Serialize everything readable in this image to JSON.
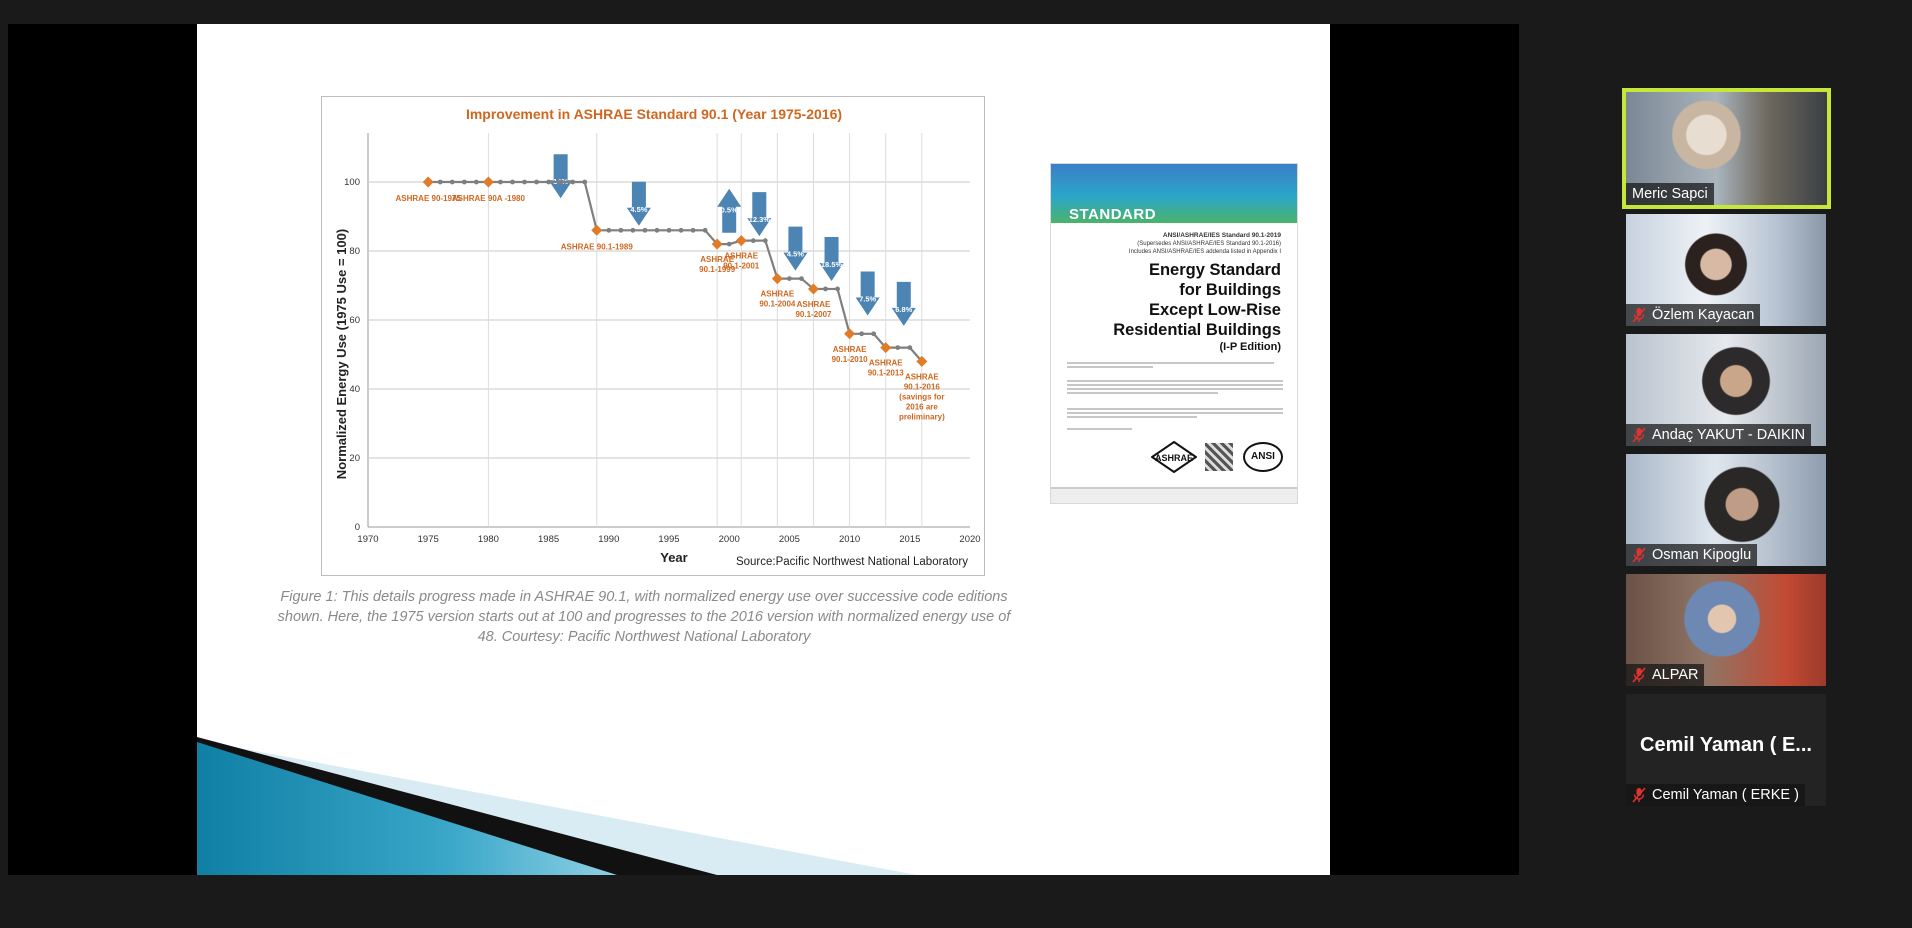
{
  "chart": {
    "title": "Improvement in ASHRAE Standard 90.1 (Year 1975-2016)",
    "ylabel": "Normalized Energy Use  (1975 Use = 100)",
    "xlabel": "Year",
    "source": "Source:Pacific Northwest National Laboratory",
    "x_ticks": [
      "1970",
      "1975",
      "1980",
      "1985",
      "1990",
      "1995",
      "2000",
      "2005",
      "2010",
      "2015",
      "2020"
    ],
    "y_ticks": [
      "0",
      "20",
      "40",
      "60",
      "80",
      "100"
    ]
  },
  "chart_data": {
    "type": "line",
    "title": "Improvement in ASHRAE Standard 90.1 (Year 1975-2016)",
    "xlabel": "Year",
    "ylabel": "Normalized Energy Use  (1975 Use = 100)",
    "xlim": [
      1970,
      2020
    ],
    "ylim": [
      0,
      100
    ],
    "grid": true,
    "series_color": "#7f7f7f",
    "marker_color": "#e07b28",
    "arrow_color": "#4c84b4",
    "label_color": "#d0671f",
    "x": [
      1975,
      1976,
      1977,
      1978,
      1979,
      1980,
      1981,
      1982,
      1983,
      1984,
      1985,
      1986,
      1987,
      1988,
      1989,
      1990,
      1991,
      1992,
      1993,
      1994,
      1995,
      1996,
      1997,
      1998,
      1999,
      2000,
      2001,
      2002,
      2003,
      2004,
      2005,
      2006,
      2007,
      2008,
      2009,
      2010,
      2011,
      2012,
      2013,
      2014,
      2015,
      2016
    ],
    "y": [
      100,
      100,
      100,
      100,
      100,
      100,
      100,
      100,
      100,
      100,
      100,
      100,
      100,
      100,
      86,
      86,
      86,
      86,
      86,
      86,
      86,
      86,
      86,
      86,
      82,
      82,
      83,
      83,
      83,
      72,
      72,
      72,
      69,
      69,
      69,
      56,
      56,
      56,
      52,
      52,
      52,
      48
    ],
    "editions": [
      {
        "x": 1975,
        "y": 100,
        "label": [
          "ASHRAE 90-1975"
        ]
      },
      {
        "x": 1980,
        "y": 100,
        "label": [
          "ASHRAE 90A -1980"
        ]
      },
      {
        "x": 1989,
        "y": 86,
        "label": [
          "ASHRAE 90.1-1989"
        ]
      },
      {
        "x": 1999,
        "y": 82,
        "label": [
          "ASHRAE",
          "90.1-1999"
        ]
      },
      {
        "x": 2001,
        "y": 83,
        "label": [
          "ASHRAE",
          "90.1-2001"
        ]
      },
      {
        "x": 2004,
        "y": 72,
        "label": [
          "ASHRAE",
          "90.1-2004"
        ]
      },
      {
        "x": 2007,
        "y": 69,
        "label": [
          "ASHRAE",
          "90.1-2007"
        ]
      },
      {
        "x": 2010,
        "y": 56,
        "label": [
          "ASHRAE",
          "90.1-2010"
        ]
      },
      {
        "x": 2013,
        "y": 52,
        "label": [
          "ASHRAE",
          "90.1-2013"
        ]
      },
      {
        "x": 2016,
        "y": 48,
        "label": [
          "ASHRAE",
          "90.1-2016",
          "(savings for",
          "2016 are",
          "preliminary)"
        ]
      }
    ],
    "arrows": [
      {
        "label": "14%",
        "direction": "down",
        "x": 1986,
        "y": 104
      },
      {
        "label": "4.5%",
        "direction": "down",
        "x": 1992.5,
        "y": 96
      },
      {
        "label": "0.5%",
        "direction": "up",
        "x": 2000,
        "y": 94
      },
      {
        "label": "12.3%",
        "direction": "down",
        "x": 2002.5,
        "y": 93
      },
      {
        "label": "4.5%",
        "direction": "down",
        "x": 2005.5,
        "y": 83
      },
      {
        "label": "18.5%",
        "direction": "down",
        "x": 2008.5,
        "y": 80
      },
      {
        "label": "7.5%",
        "direction": "down",
        "x": 2011.5,
        "y": 70
      },
      {
        "label": "6.8%",
        "direction": "down",
        "x": 2014.5,
        "y": 67
      }
    ]
  },
  "caption": "Figure 1: This details progress made in ASHRAE 90.1, with normalized energy use over successive code editions shown. Here, the 1975 version starts out at 100 and progresses to the 2016 version with normalized energy use of 48. Courtesy: Pacific Northwest National Laboratory",
  "cover": {
    "band_text": "STANDARD",
    "designation": "ANSI/ASHRAE/IES Standard 90.1-2019",
    "supersedes": "(Supersedes ANSI/ASHRAE/IES Standard 90.1-2016)",
    "addenda": "Includes ANSI/ASHRAE/IES addenda listed in Appendix I",
    "title_l1": "Energy Standard",
    "title_l2": "for Buildings",
    "title_l3": "Except Low-Rise",
    "title_l4": "Residential Buildings",
    "edition": "(I-P Edition)",
    "logo_ansi": "ANSI"
  },
  "participants": [
    {
      "name": "Meric Sapci",
      "muted": false,
      "active": true,
      "video": true
    },
    {
      "name": "Özlem Kayacan",
      "muted": true,
      "active": false,
      "video": true
    },
    {
      "name": "Andaç YAKUT - DAIKIN",
      "muted": true,
      "active": false,
      "video": true
    },
    {
      "name": "Osman Kipoglu",
      "muted": true,
      "active": false,
      "video": true
    },
    {
      "name": "ALPAR",
      "muted": true,
      "active": false,
      "video": true
    },
    {
      "name": "Cemil Yaman ( ERKE )",
      "display": "Cemil Yaman ( E...",
      "muted": true,
      "active": false,
      "video": false
    }
  ],
  "colors": {
    "active_speaker_border": "#c4e73a",
    "mic_muted": "#e0322f",
    "app_background": "#1a1a1a"
  }
}
